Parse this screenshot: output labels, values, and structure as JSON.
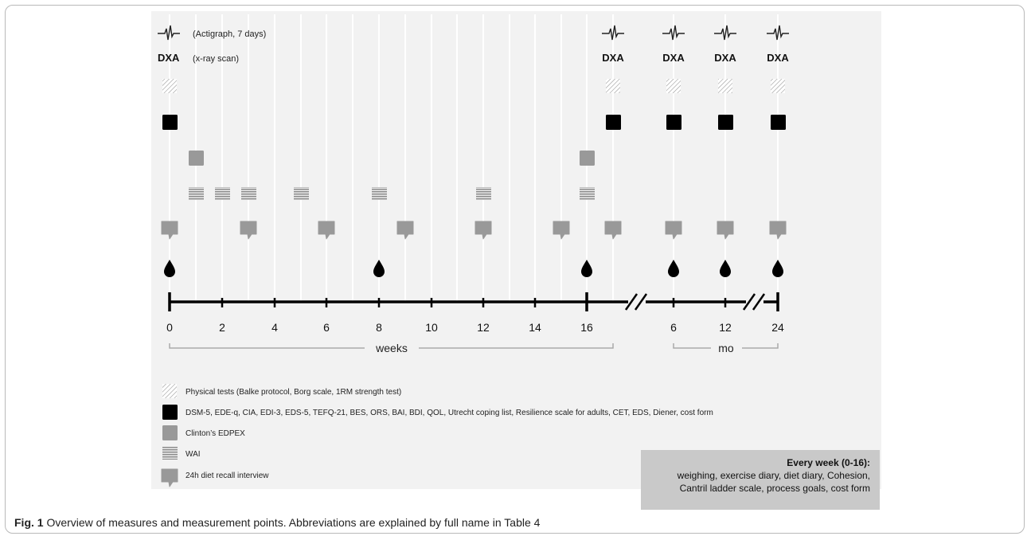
{
  "header_legend": {
    "actigraph_label": "(Actigraph, 7 days)",
    "dxa_label": "DXA",
    "dxa_desc": "(x-ray scan)"
  },
  "dxa_text": "DXA",
  "axis": {
    "ticks": [
      "0",
      "2",
      "4",
      "6",
      "8",
      "10",
      "12",
      "14",
      "16",
      "6",
      "12",
      "24"
    ],
    "weeks_label": "weeks",
    "months_label": "mo"
  },
  "legend": [
    {
      "icon": "hatched-square-icon",
      "text": "Physical tests (Balke protocol, Borg scale, 1RM strength test)"
    },
    {
      "icon": "black-square-icon",
      "text": "DSM-5, EDE-q, CIA, EDI-3, EDS-5, TEFQ-21, BES, ORS, BAI, BDI, QOL, Utrecht coping list, Resilience scale for adults, CET, EDS, Diener, cost form"
    },
    {
      "icon": "grey-square-icon",
      "text": "Clinton’s EDPEX"
    },
    {
      "icon": "striped-square-icon",
      "text": "WAI"
    },
    {
      "icon": "speech-bubble-icon",
      "text": "24h diet recall interview"
    }
  ],
  "every_week": {
    "heading": "Every week (0-16):",
    "lines": [
      "weighing, exercise diary, diet diary, Cohesion,",
      "Cantril ladder scale, process goals, cost form"
    ]
  },
  "caption": {
    "label": "Fig. 1",
    "text": " Overview of measures and measurement points. Abbreviations are explained by full name in Table 4"
  },
  "colors": {
    "panel": "#f2f2f2",
    "grey_marker": "#999999",
    "black_marker": "#000000",
    "everyweek_box": "#c9c9c9"
  }
}
